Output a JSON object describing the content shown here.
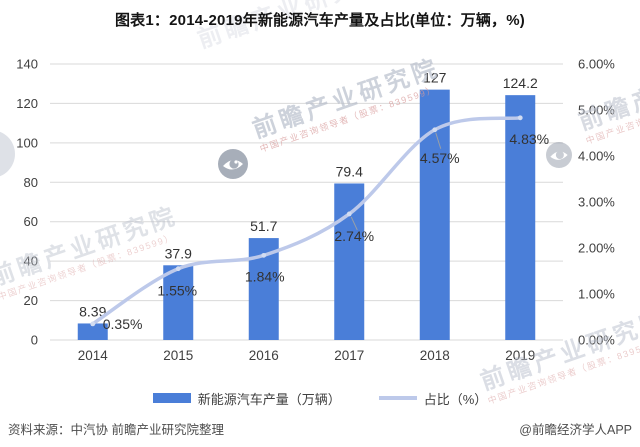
{
  "chart_data": {
    "type": "bar+line",
    "title": "图表1：2014-2019年新能源汽车产量及占比(单位：万辆，%)",
    "categories": [
      "2014",
      "2015",
      "2016",
      "2017",
      "2018",
      "2019"
    ],
    "series": [
      {
        "name": "新能源汽车产量（万辆）",
        "type": "bar",
        "axis": "left",
        "values": [
          8.39,
          37.9,
          51.7,
          79.4,
          127,
          124.2
        ],
        "labels": [
          "8.39",
          "37.9",
          "51.7",
          "79.4",
          "127",
          "124.2"
        ],
        "color": "#4a7ed8"
      },
      {
        "name": "占比（%）",
        "type": "line",
        "axis": "right",
        "values": [
          0.35,
          1.55,
          1.84,
          2.74,
          4.57,
          4.83
        ],
        "labels": [
          "0.35%",
          "1.55%",
          "1.84%",
          "2.74%",
          "4.57%",
          "4.83%"
        ],
        "color": "#bdc9ea",
        "marker_color": "#d2dcf1"
      }
    ],
    "left_axis": {
      "min": 0,
      "max": 140,
      "step": 20,
      "ticks": [
        "0",
        "20",
        "40",
        "60",
        "80",
        "100",
        "120",
        "140"
      ]
    },
    "right_axis": {
      "min": 0,
      "max": 6,
      "step": 1,
      "ticks": [
        "0.00%",
        "1.00%",
        "2.00%",
        "3.00%",
        "4.00%",
        "5.00%",
        "6.00%"
      ]
    },
    "grid": true,
    "grid_color": "#d9d9d9",
    "legend_position": "bottom"
  },
  "footer": {
    "source": "资料来源：中汽协 前瞻产业研究院整理",
    "credit": "@前瞻经济学人APP"
  },
  "watermark": {
    "text": "前瞻产业研究院",
    "subtext": "中国产业咨询领导者（股票：839599）"
  }
}
